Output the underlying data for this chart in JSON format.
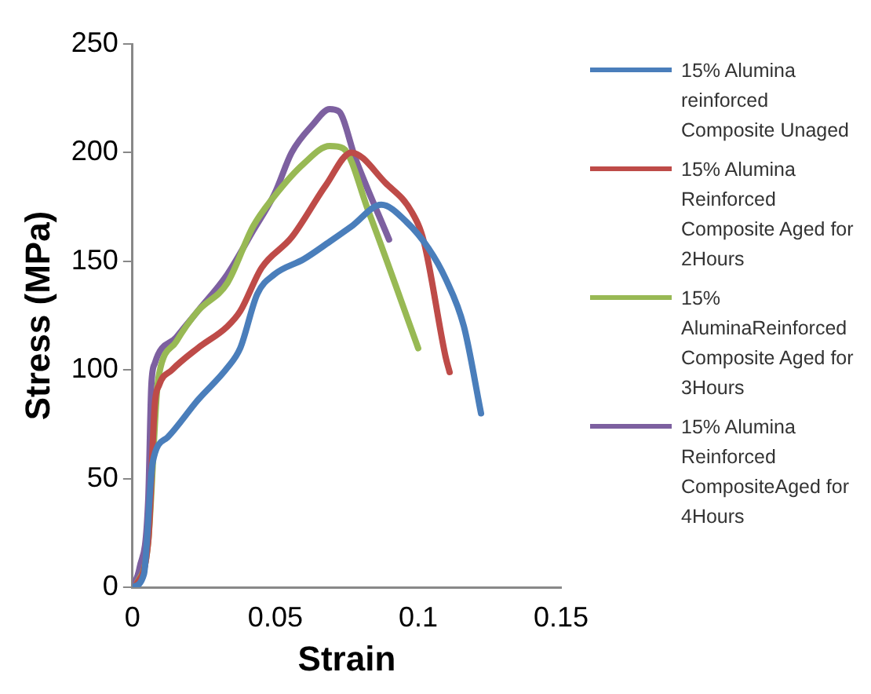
{
  "chart_data": {
    "type": "line",
    "xlabel": "Strain",
    "ylabel": "Stress (MPa)",
    "xlim": [
      0,
      0.15
    ],
    "xticks": [
      0,
      0.05,
      0.1,
      0.15
    ],
    "ylim": [
      0,
      250
    ],
    "yticks": [
      0,
      50,
      100,
      150,
      200,
      250
    ],
    "grid": false,
    "legend": "right",
    "marker": "none",
    "line_style": "solid",
    "series": [
      {
        "name": "15% Alumina reinforced Composite Unaged",
        "color": "#4a7ebb",
        "x": [
          0,
          0.004,
          0.007,
          0.0123,
          0.0228,
          0.0332,
          0.0377,
          0.0437,
          0.0497,
          0.06,
          0.069,
          0.0766,
          0.0871,
          0.096,
          0.1036,
          0.1096,
          0.116,
          0.122
        ],
        "values": [
          0,
          6,
          57,
          69,
          86,
          101,
          110,
          135,
          144,
          151,
          159,
          166,
          176,
          168,
          156,
          142,
          120,
          80
        ]
      },
      {
        "name": "15% Alumina Reinforced Composite Aged for 2Hours",
        "color": "#be4b48",
        "x": [
          0.001,
          0.0055,
          0.0078,
          0.0093,
          0.0138,
          0.0228,
          0.0332,
          0.0377,
          0.0452,
          0.0557,
          0.0677,
          0.0766,
          0.0886,
          0.0976,
          0.102,
          0.1096,
          0.111
        ],
        "values": [
          0,
          21,
          84,
          93,
          100,
          110,
          120,
          127,
          147,
          161,
          185,
          200,
          186,
          173,
          159,
          106,
          99
        ]
      },
      {
        "name": "15% AluminaReinforced Composite Aged for 3Hours",
        "color": "#98b954",
        "x": [
          0.001,
          0.0055,
          0.0085,
          0.0093,
          0.0153,
          0.0228,
          0.0332,
          0.0422,
          0.0497,
          0.06,
          0.069,
          0.0737,
          0.0826,
          0.1
        ],
        "values": [
          0,
          21,
          89,
          98,
          113,
          127,
          140,
          166,
          180,
          195,
          203,
          202,
          173,
          110
        ]
      },
      {
        "name": "15% Alumina Reinforced CompositeAged for 4Hours",
        "color": "#7d60a0",
        "x": [
          0,
          0.0025,
          0.0055,
          0.0066,
          0.0078,
          0.0153,
          0.0228,
          0.0332,
          0.0422,
          0.0497,
          0.0557,
          0.0632,
          0.069,
          0.0722,
          0.0781,
          0.0898
        ],
        "values": [
          0,
          9,
          40,
          93,
          103,
          115,
          127,
          144,
          164,
          181,
          200,
          213,
          220,
          219,
          197,
          160
        ]
      }
    ]
  }
}
